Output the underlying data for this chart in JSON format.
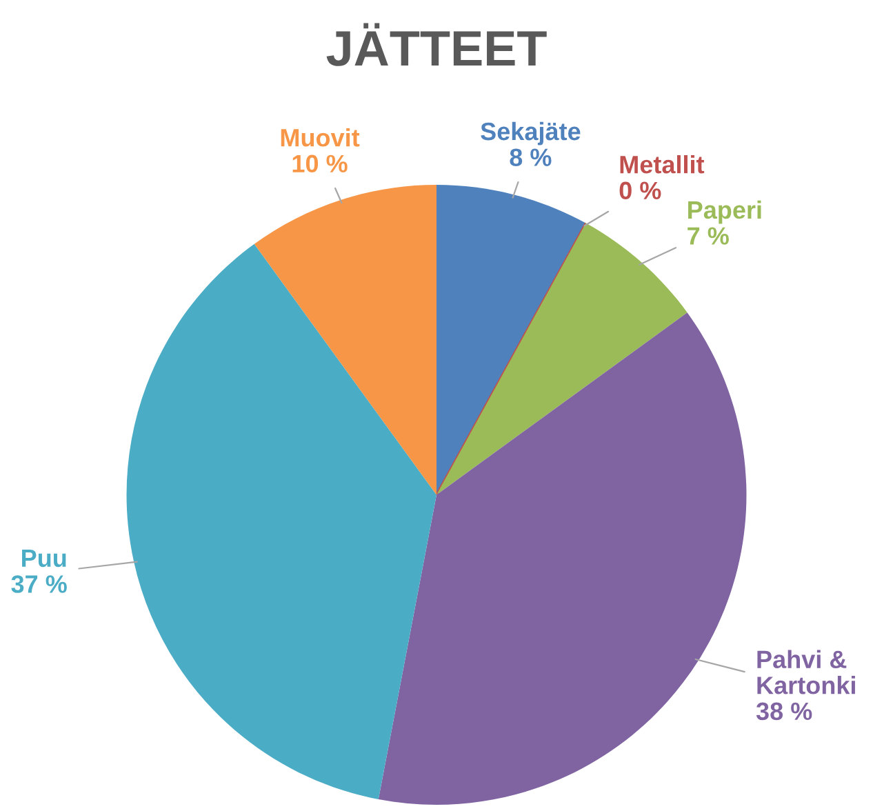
{
  "chart_data": {
    "type": "pie",
    "title": "JÄTTEET",
    "categories": [
      "Sekajäte",
      "Metallit",
      "Paperi",
      "Pahvi & Kartonki",
      "Puu",
      "Muovit"
    ],
    "values": [
      8,
      0,
      7,
      38,
      37,
      10
    ],
    "value_labels": [
      "8 %",
      "0 %",
      "7 %",
      "38 %",
      "37 %",
      "10 %"
    ],
    "colors": [
      "#4f81bd",
      "#c0504d",
      "#9bbb59",
      "#8064a2",
      "#4bacc6",
      "#f79646"
    ]
  }
}
